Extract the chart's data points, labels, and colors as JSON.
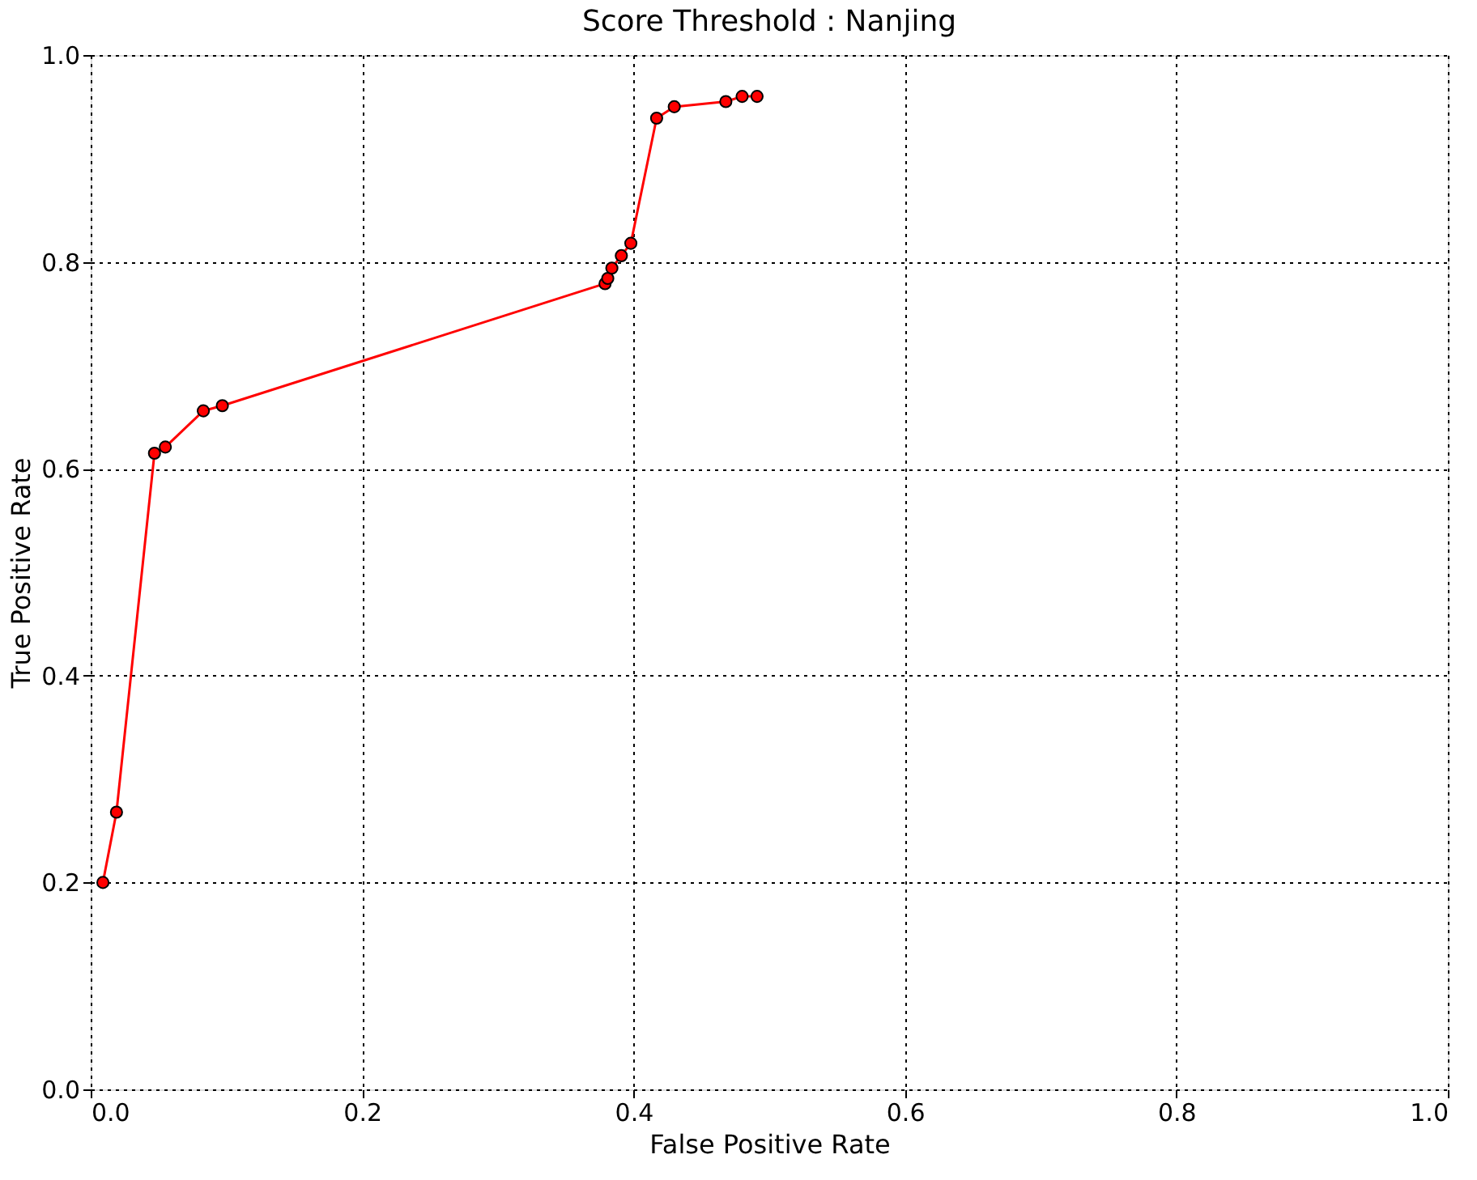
{
  "chart_data": {
    "type": "line",
    "title": "Score Threshold : Nanjing",
    "xlabel": "False Positive Rate",
    "ylabel": "True Positive Rate",
    "x": [
      0.009,
      0.019,
      0.047,
      0.055,
      0.083,
      0.097,
      0.379,
      0.381,
      0.384,
      0.391,
      0.398,
      0.417,
      0.43,
      0.468,
      0.48,
      0.491
    ],
    "series": [
      {
        "color": "#ff0000",
        "values": [
          0.2,
          0.268,
          0.615,
          0.621,
          0.656,
          0.661,
          0.779,
          0.784,
          0.794,
          0.806,
          0.818,
          0.939,
          0.95,
          0.955,
          0.96,
          0.96
        ]
      }
    ],
    "xlim": [
      0,
      1
    ],
    "ylim": [
      0,
      1
    ],
    "xticks": [
      {
        "value": 0,
        "label": "0.0"
      },
      0.2,
      0.4,
      0.6,
      0.8,
      {
        "value": 1,
        "label": "1.0"
      }
    ],
    "yticks": [
      {
        "value": 0,
        "label": "0.0"
      },
      0.2,
      0.4,
      0.6,
      0.8,
      {
        "value": 1,
        "label": "1.0"
      }
    ],
    "grid": true,
    "marker": "circle",
    "line_style": "solid"
  }
}
